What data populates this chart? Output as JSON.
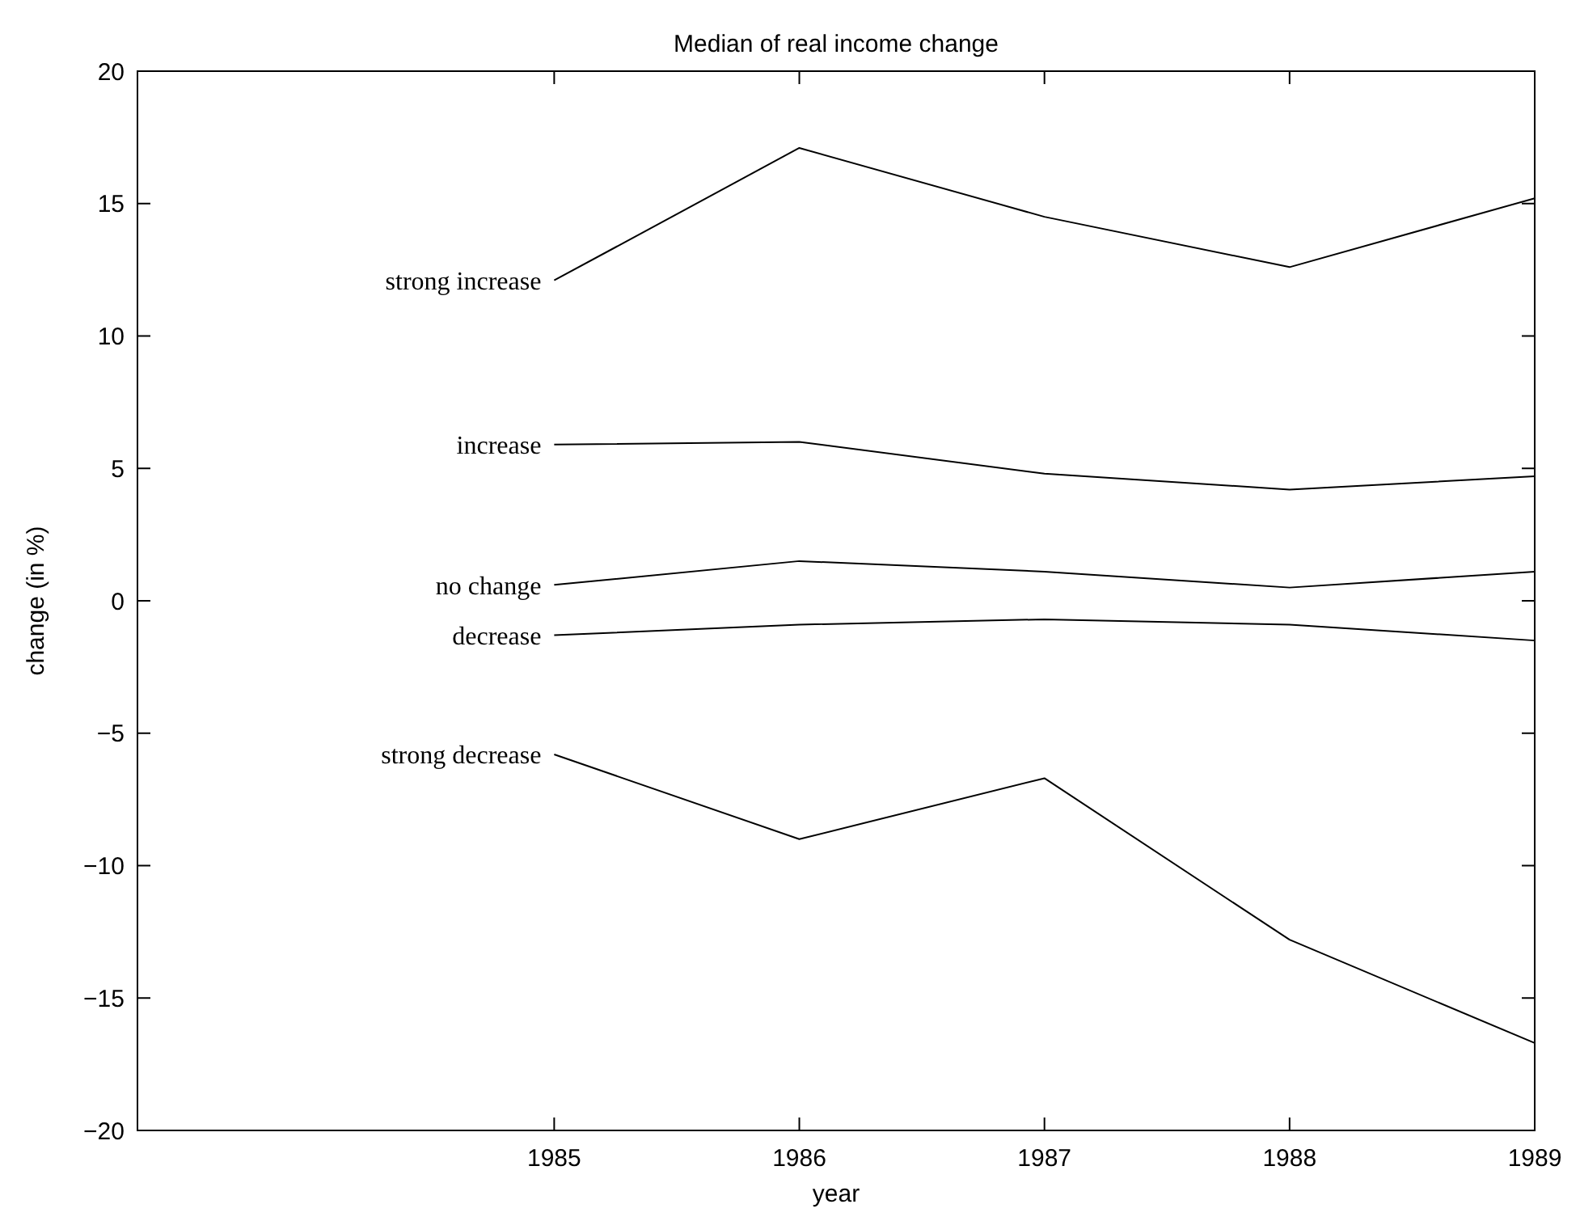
{
  "chart_data": {
    "type": "line",
    "title": "Median of real income change",
    "xlabel": "year",
    "ylabel": "change (in %)",
    "x": [
      1985,
      1986,
      1987,
      1988,
      1989
    ],
    "series": [
      {
        "name": "strong increase",
        "color": "#000000",
        "values": [
          12.1,
          17.1,
          14.5,
          12.6,
          15.2
        ]
      },
      {
        "name": "increase",
        "color": "#000000",
        "values": [
          5.9,
          6.0,
          4.8,
          4.2,
          4.7
        ]
      },
      {
        "name": "no change",
        "color": "#000000",
        "values": [
          0.6,
          1.5,
          1.1,
          0.5,
          1.1
        ]
      },
      {
        "name": "decrease",
        "color": "#000000",
        "values": [
          -1.3,
          -0.9,
          -0.7,
          -0.9,
          -1.5
        ]
      },
      {
        "name": "strong decrease",
        "color": "#000000",
        "values": [
          -5.8,
          -9.0,
          -6.7,
          -12.8,
          -16.7
        ]
      }
    ],
    "xlim": [
      1983.3,
      1989
    ],
    "xticks": [
      1985,
      1986,
      1987,
      1988,
      1989
    ],
    "ylim": [
      -20,
      20
    ],
    "yticks": [
      {
        "value": -20,
        "label": "−20"
      },
      {
        "value": -15,
        "label": "−15"
      },
      {
        "value": -10,
        "label": "−10"
      },
      {
        "value": -5,
        "label": "−5"
      },
      0,
      5,
      10,
      15,
      20
    ],
    "grid": false,
    "legend": false,
    "marker": "none",
    "line_style": "solid"
  }
}
